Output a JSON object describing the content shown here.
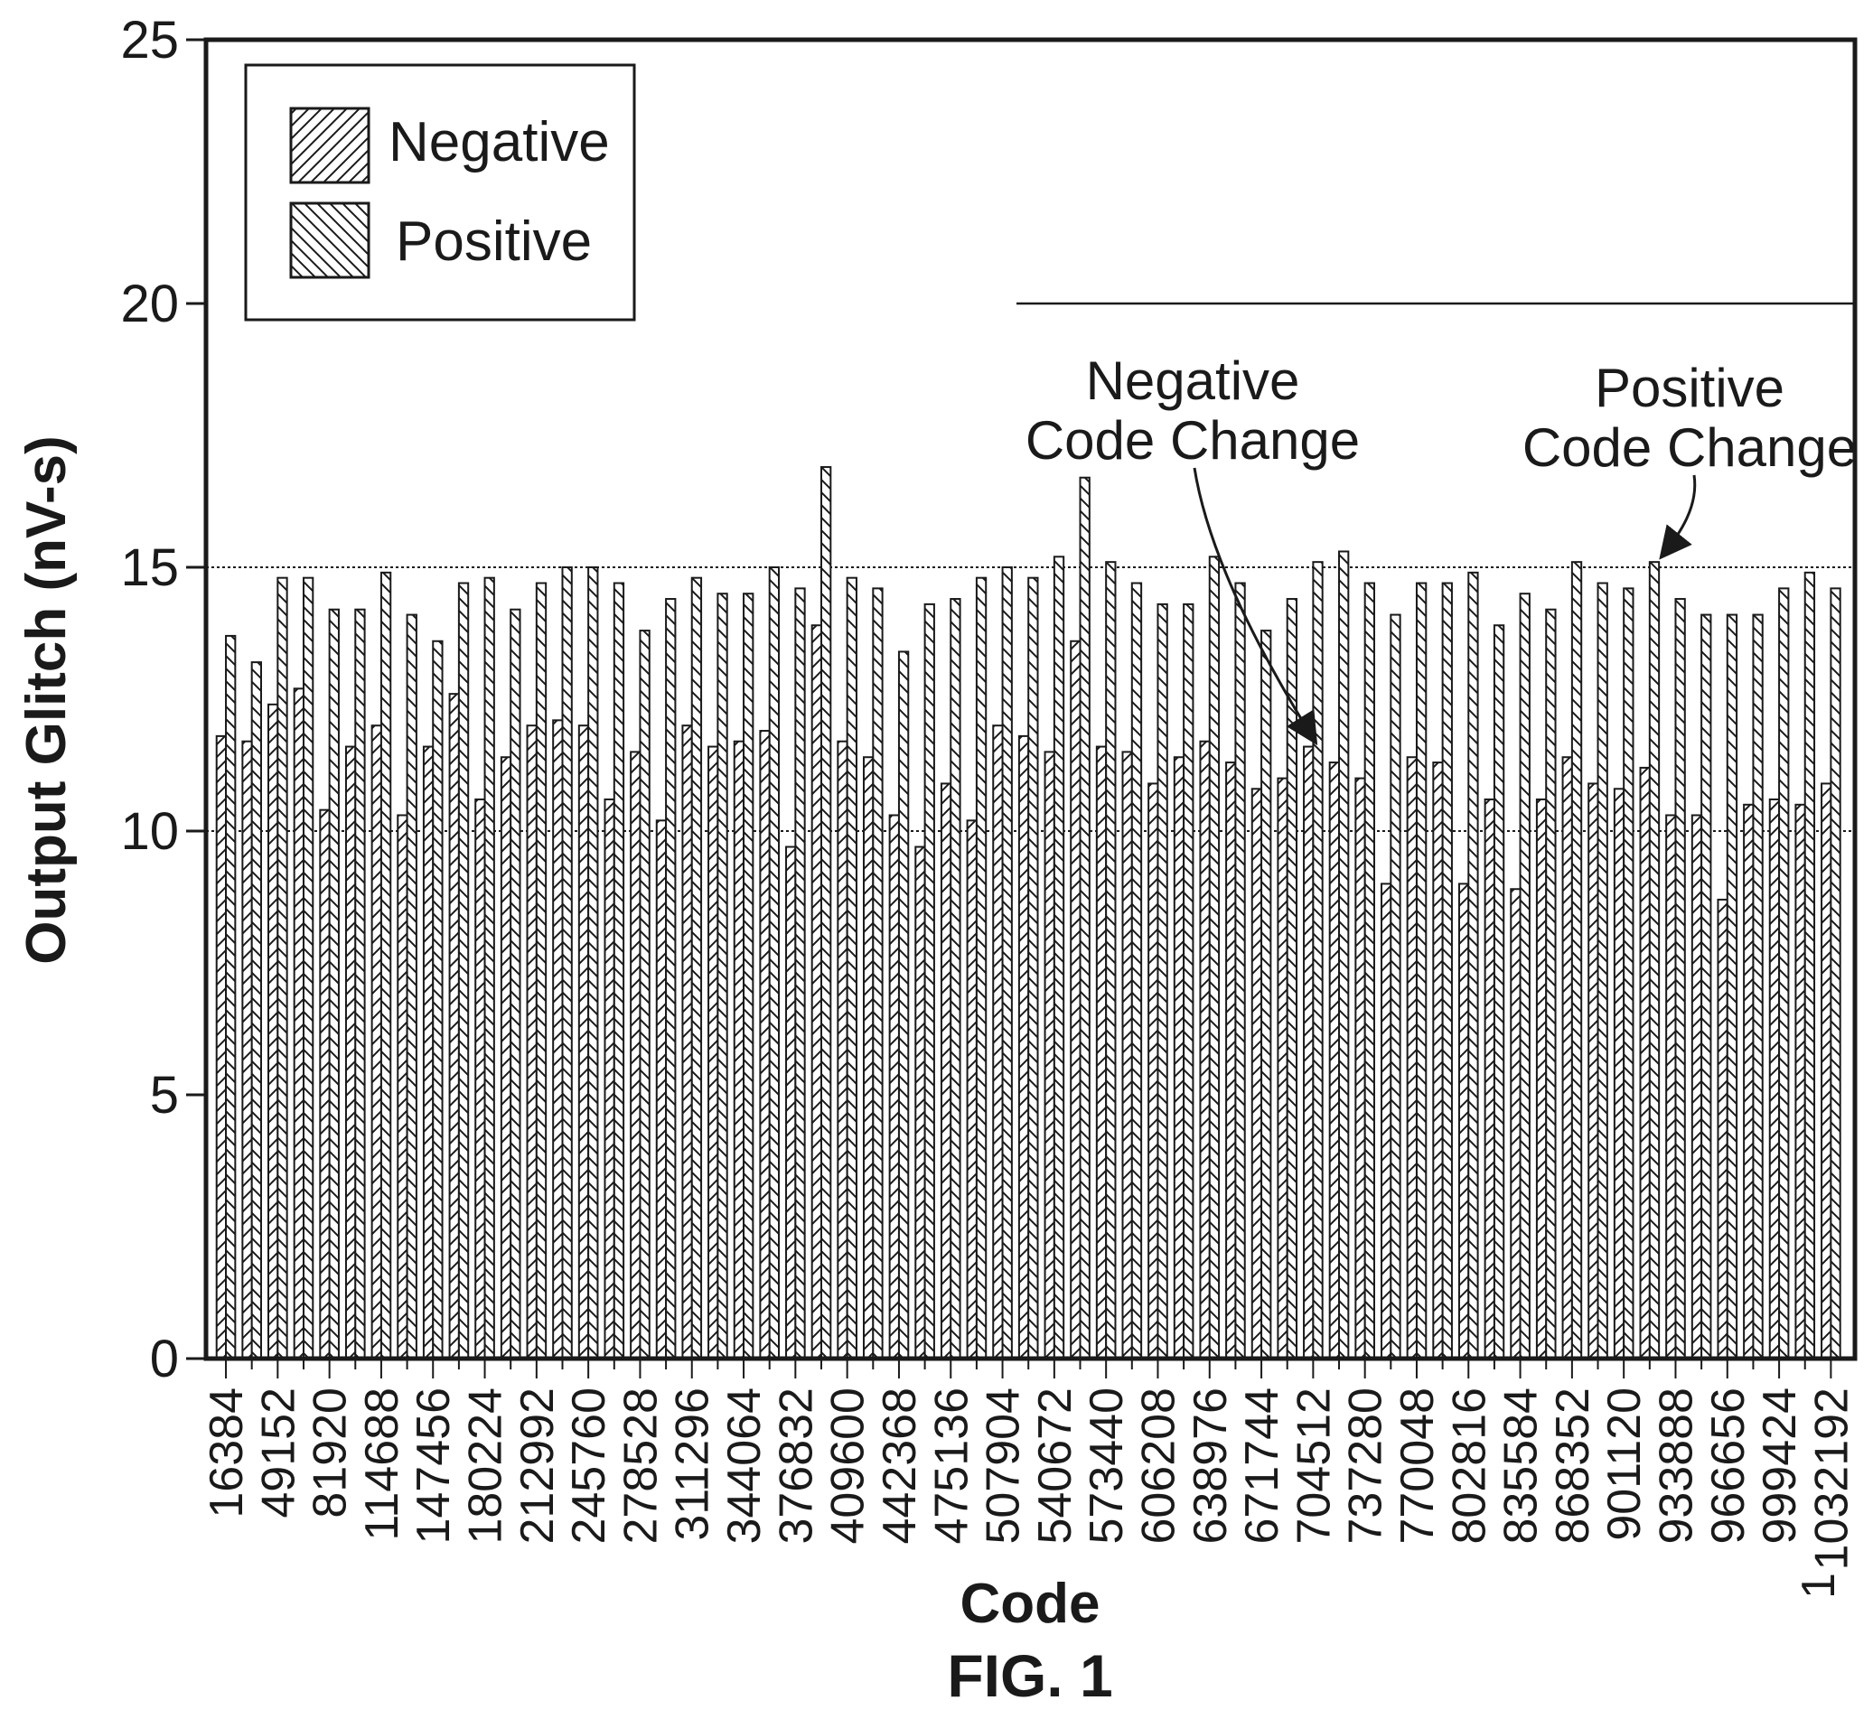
{
  "chart_data": {
    "type": "bar",
    "xlabel": "Code",
    "ylabel": "Output Glitch (nV-s)",
    "caption": "FIG. 1",
    "ylim": [
      0,
      25
    ],
    "y_ticks": [
      "0",
      "5",
      "10",
      "15",
      "20",
      "25"
    ],
    "grid": "horizontal dashed at 10, 15 and 20",
    "legend": {
      "placement": "top-left",
      "entries": [
        "Negative",
        "Positive"
      ]
    },
    "colors": {
      "ink": "#1a1a1a",
      "background": "#ffffff"
    },
    "x_tick_labels": [
      "16384",
      "49152",
      "81920",
      "114688",
      "147456",
      "180224",
      "212992",
      "245760",
      "278528",
      "311296",
      "344064",
      "376832",
      "409600",
      "442368",
      "475136",
      "507904",
      "540672",
      "573440",
      "606208",
      "638976",
      "671744",
      "704512",
      "737280",
      "770048",
      "802816",
      "835584",
      "868352",
      "901120",
      "933888",
      "966656",
      "999424",
      "1032192"
    ],
    "last_tick_overflow": "1",
    "categories": [
      "16384",
      "32768",
      "49152",
      "65536",
      "81920",
      "98304",
      "114688",
      "131072",
      "147456",
      "163840",
      "180224",
      "196608",
      "212992",
      "229376",
      "245760",
      "262144",
      "278528",
      "294912",
      "311296",
      "327680",
      "344064",
      "360448",
      "376832",
      "393216",
      "409600",
      "425984",
      "442368",
      "458752",
      "475136",
      "491520",
      "507904",
      "524288",
      "540672",
      "557056",
      "573440",
      "589824",
      "606208",
      "622592",
      "638976",
      "655360",
      "671744",
      "688128",
      "704512",
      "720896",
      "737280",
      "753664",
      "770048",
      "786432",
      "802816",
      "819200",
      "835584",
      "851968",
      "868352",
      "884736",
      "901120",
      "917504",
      "933888",
      "950272",
      "966656",
      "983040",
      "999424",
      "1015808",
      "1032192"
    ],
    "series": [
      {
        "name": "Negative",
        "values": [
          11.8,
          11.7,
          12.4,
          12.7,
          10.4,
          11.6,
          12.0,
          10.3,
          11.6,
          12.6,
          10.6,
          11.4,
          12.0,
          12.1,
          12.0,
          10.6,
          11.5,
          10.2,
          12.0,
          11.6,
          11.7,
          11.9,
          9.7,
          13.9,
          11.7,
          11.4,
          10.3,
          9.7,
          10.9,
          10.2,
          12.0,
          11.8,
          11.5,
          13.6,
          11.6,
          11.5,
          10.9,
          11.4,
          11.7,
          11.3,
          10.8,
          11.0,
          11.6,
          11.3,
          11.0,
          9.0,
          11.4,
          11.3,
          9.0,
          10.6,
          8.9,
          10.6,
          11.4,
          10.9,
          10.8,
          11.2,
          10.3,
          10.3,
          8.7,
          10.5,
          10.6,
          10.5,
          10.9
        ]
      },
      {
        "name": "Positive",
        "values": [
          13.7,
          13.2,
          14.8,
          14.8,
          14.2,
          14.2,
          14.9,
          14.1,
          13.6,
          14.7,
          14.8,
          14.2,
          14.7,
          15.0,
          15.0,
          14.7,
          13.8,
          14.4,
          14.8,
          14.5,
          14.5,
          15.0,
          14.6,
          16.9,
          14.8,
          14.6,
          13.4,
          14.3,
          14.4,
          14.8,
          15.0,
          14.8,
          15.2,
          16.7,
          15.1,
          14.7,
          14.3,
          14.3,
          15.2,
          14.7,
          13.8,
          14.4,
          15.1,
          15.3,
          14.7,
          14.1,
          14.7,
          14.7,
          14.9,
          13.9,
          14.5,
          14.2,
          15.1,
          14.7,
          14.6,
          15.1,
          14.4,
          14.1,
          14.1,
          14.1,
          14.6,
          14.9,
          14.6
        ]
      }
    ],
    "annotations": [
      {
        "lines": [
          "Negative",
          "Code Change"
        ],
        "points_to": "704512"
      },
      {
        "lines": [
          "Positive",
          "Code Change"
        ],
        "points_to": "917504"
      }
    ]
  }
}
